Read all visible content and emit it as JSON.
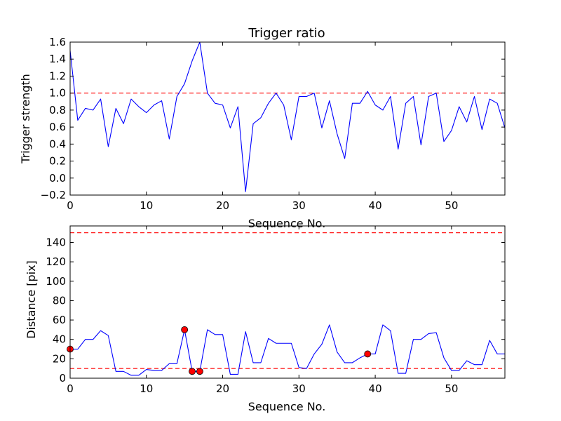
{
  "chart_data": [
    {
      "type": "line",
      "title": "Trigger ratio",
      "xlabel": "Sequence No.",
      "ylabel": "Trigger strength",
      "xlim": [
        0,
        57
      ],
      "ylim": [
        -0.2,
        1.6
      ],
      "xticks": [
        "0",
        "10",
        "20",
        "30",
        "40",
        "50"
      ],
      "yticks": [
        "−0.2",
        "0.0",
        "0.2",
        "0.4",
        "0.6",
        "0.8",
        "1.0",
        "1.2",
        "1.4",
        "1.6"
      ],
      "series": [
        {
          "color": "#0000ff",
          "x": [
            0,
            1,
            2,
            3,
            4,
            5,
            6,
            7,
            8,
            9,
            10,
            11,
            12,
            13,
            14,
            15,
            16,
            17,
            18,
            19,
            20,
            21,
            22,
            23,
            24,
            25,
            26,
            27,
            28,
            29,
            30,
            31,
            32,
            33,
            34,
            35,
            36,
            37,
            38,
            39,
            40,
            41,
            42,
            43,
            44,
            45,
            46,
            47,
            48,
            49,
            50,
            51,
            52,
            53,
            54,
            55,
            56,
            57
          ],
          "y": [
            1.5,
            0.68,
            0.82,
            0.8,
            0.93,
            0.37,
            0.82,
            0.64,
            0.93,
            0.84,
            0.77,
            0.86,
            0.91,
            0.46,
            0.96,
            1.11,
            1.38,
            1.6,
            1.0,
            0.88,
            0.86,
            0.59,
            0.84,
            -0.16,
            0.64,
            0.71,
            0.88,
            1.0,
            0.86,
            0.45,
            0.96,
            0.96,
            1.0,
            0.59,
            0.91,
            0.52,
            0.23,
            0.88,
            0.88,
            1.02,
            0.86,
            0.8,
            0.96,
            0.34,
            0.88,
            0.96,
            0.39,
            0.96,
            1.0,
            0.43,
            0.56,
            0.84,
            0.66,
            0.96,
            0.57,
            0.93,
            0.88,
            0.59
          ]
        }
      ],
      "hlines": [
        {
          "y": 1.0,
          "color": "#ff0000",
          "style": "dashed"
        }
      ],
      "grid": false
    },
    {
      "type": "line",
      "title": "",
      "xlabel": "Sequence No.",
      "ylabel": "Distance [pix]",
      "xlim": [
        0,
        57
      ],
      "ylim": [
        0,
        157
      ],
      "xticks": [
        "0",
        "10",
        "20",
        "30",
        "40",
        "50"
      ],
      "yticks": [
        "0",
        "20",
        "40",
        "60",
        "80",
        "100",
        "120",
        "140"
      ],
      "series": [
        {
          "color": "#0000ff",
          "x": [
            0,
            1,
            2,
            3,
            4,
            5,
            6,
            7,
            8,
            9,
            10,
            11,
            12,
            13,
            14,
            15,
            16,
            17,
            18,
            19,
            20,
            21,
            22,
            23,
            24,
            25,
            26,
            27,
            28,
            29,
            30,
            31,
            32,
            33,
            34,
            35,
            36,
            37,
            38,
            39,
            40,
            41,
            42,
            43,
            44,
            45,
            46,
            47,
            48,
            49,
            50,
            51,
            52,
            53,
            54,
            55,
            56,
            57
          ],
          "y": [
            30,
            30,
            40,
            40,
            49,
            44,
            7,
            7,
            3,
            3,
            9,
            8,
            8,
            15,
            15,
            50,
            7,
            7,
            50,
            45,
            45,
            4,
            4,
            48,
            16,
            16,
            41,
            36,
            36,
            36,
            11,
            10,
            25,
            35,
            55,
            27,
            16,
            16,
            21,
            25,
            25,
            55,
            49,
            5,
            5,
            40,
            40,
            46,
            47,
            21,
            8,
            8,
            18,
            14,
            14,
            39,
            25,
            25
          ]
        },
        {
          "type": "scatter",
          "color": "#ff0000",
          "x": [
            0,
            15,
            16,
            17,
            39
          ],
          "y": [
            30,
            50,
            7,
            7,
            25
          ]
        }
      ],
      "hlines": [
        {
          "y": 150,
          "color": "#ff0000",
          "style": "dashed"
        },
        {
          "y": 10,
          "color": "#ff0000",
          "style": "dashed"
        }
      ],
      "grid": false
    }
  ]
}
